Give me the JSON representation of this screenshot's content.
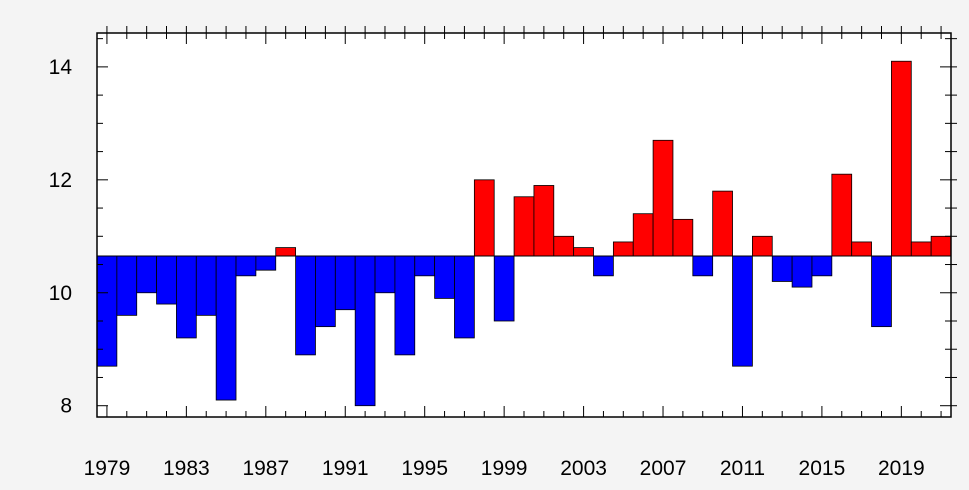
{
  "chart_data": {
    "type": "bar",
    "title": "",
    "xlabel": "",
    "ylabel": "",
    "baseline": 10.65,
    "ylim": [
      7.8,
      14.6
    ],
    "xlim": [
      1978.5,
      2021.5
    ],
    "yticks": [
      8,
      10,
      12,
      14
    ],
    "ytick_labels": [
      "8",
      "10",
      "12",
      "14"
    ],
    "xtick_labels": [
      "1979",
      "1983",
      "1987",
      "1991",
      "1995",
      "1999",
      "2003",
      "2007",
      "2011",
      "2015",
      "2019"
    ],
    "grid": false,
    "colors": {
      "above": "#ff0000",
      "below": "#0000ff",
      "edge": "#000000",
      "panel": "#ffffff",
      "background": "#f4f4f4"
    },
    "categories": [
      1979,
      1980,
      1981,
      1982,
      1983,
      1984,
      1985,
      1986,
      1987,
      1988,
      1989,
      1990,
      1991,
      1992,
      1993,
      1994,
      1995,
      1996,
      1997,
      1998,
      1999,
      2000,
      2001,
      2002,
      2003,
      2004,
      2005,
      2006,
      2007,
      2008,
      2009,
      2010,
      2011,
      2012,
      2013,
      2014,
      2015,
      2016,
      2017,
      2018,
      2019,
      2020,
      2021
    ],
    "values": [
      8.7,
      9.6,
      10.0,
      9.8,
      9.2,
      9.6,
      8.1,
      10.3,
      10.4,
      10.8,
      8.9,
      9.4,
      9.7,
      8.0,
      10.0,
      8.9,
      10.3,
      9.9,
      9.2,
      12.0,
      9.5,
      11.7,
      11.9,
      11.0,
      10.8,
      10.3,
      10.9,
      11.4,
      12.7,
      11.3,
      10.3,
      11.8,
      8.7,
      11.0,
      10.2,
      10.1,
      10.3,
      12.1,
      10.9,
      9.4,
      14.1,
      10.9,
      11.0
    ]
  }
}
